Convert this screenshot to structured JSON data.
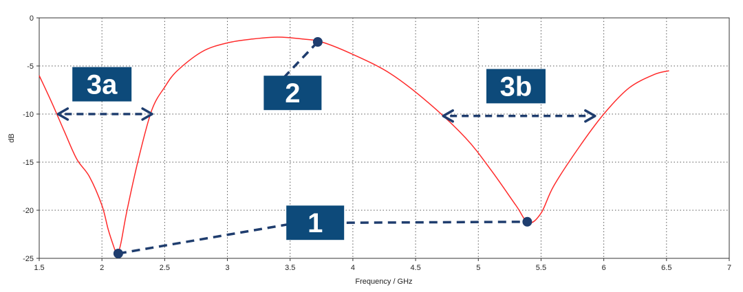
{
  "chart_data": {
    "type": "line",
    "title": "",
    "xlabel": "Frequency / GHz",
    "ylabel": "dB",
    "xlim": [
      1.5,
      7
    ],
    "ylim": [
      -25,
      0
    ],
    "x_ticks": [
      1.5,
      2,
      2.5,
      3,
      3.5,
      4,
      4.5,
      5,
      5.5,
      6,
      6.5,
      7
    ],
    "x_tick_labels": [
      "1.5",
      "2",
      "2.5",
      "3",
      "3.5",
      "4",
      "4.5",
      "5",
      "5.5",
      "6",
      "6.5",
      "7"
    ],
    "y_ticks": [
      0,
      -5,
      -10,
      -15,
      -20,
      -25
    ],
    "y_tick_labels": [
      "0",
      "-5",
      "-10",
      "-15",
      "-20",
      "-25"
    ],
    "grid": true,
    "colors": {
      "line": "#ff2a2a",
      "annotation": "#1f3d6e",
      "badge": "#0d4a7a",
      "grid": "#555555"
    },
    "series": [
      {
        "x": [
          1.5,
          1.6,
          1.7,
          1.8,
          1.9,
          2.0,
          2.05,
          2.1,
          2.12,
          2.15,
          2.2,
          2.3,
          2.4,
          2.5,
          2.6,
          2.8,
          3.0,
          3.2,
          3.4,
          3.6,
          3.75,
          4.0,
          4.3,
          4.6,
          4.9,
          5.1,
          5.3,
          5.4,
          5.5,
          5.6,
          5.8,
          6.0,
          6.2,
          6.4,
          6.52
        ],
        "y": [
          -6,
          -8.8,
          -11.8,
          -14.7,
          -16.5,
          -19.5,
          -22.0,
          -24.0,
          -24.6,
          -23.5,
          -20.0,
          -14.2,
          -9.5,
          -7.2,
          -5.5,
          -3.5,
          -2.6,
          -2.2,
          -2.0,
          -2.2,
          -2.5,
          -3.8,
          -5.8,
          -8.8,
          -12.5,
          -15.8,
          -19.5,
          -21.3,
          -20.3,
          -17.5,
          -13.5,
          -10.0,
          -7.3,
          -5.9,
          -5.5
        ]
      }
    ],
    "markers": [
      {
        "x": 2.13,
        "y": -24.5
      },
      {
        "x": 3.72,
        "y": -2.5
      },
      {
        "x": 5.39,
        "y": -21.2
      }
    ],
    "labels": [
      {
        "text": "1",
        "x": 3.7,
        "y": -21.3
      },
      {
        "text": "2",
        "x": 3.52,
        "y": -7.8
      },
      {
        "text": "3a",
        "x": 2.0,
        "y": -6.9
      },
      {
        "text": "3b",
        "x": 5.3,
        "y": -7.1
      }
    ],
    "connectors": [
      {
        "points": [
          [
            2.13,
            -24.5
          ],
          [
            3.56,
            -21.3
          ]
        ]
      },
      {
        "points": [
          [
            3.95,
            -21.3
          ],
          [
            5.39,
            -21.2
          ]
        ]
      },
      {
        "points": [
          [
            3.72,
            -2.5
          ],
          [
            3.45,
            -6.2
          ]
        ]
      }
    ],
    "ranges": [
      {
        "from": 1.65,
        "to": 2.4,
        "y": -10.0
      },
      {
        "from": 4.72,
        "to": 5.93,
        "y": -10.2
      }
    ]
  }
}
